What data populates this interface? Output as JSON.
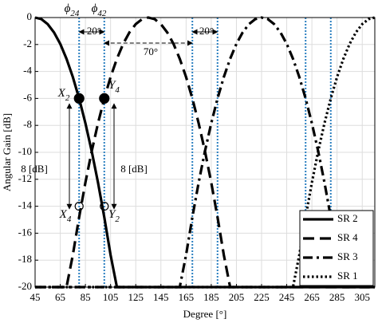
{
  "chart_data": {
    "type": "line",
    "xlabel": "Degree [°]",
    "ylabel": "Angular Gain [dB]",
    "x": [
      45,
      50,
      55,
      60,
      65,
      70,
      75,
      80,
      85,
      90,
      95,
      100,
      105,
      110,
      115,
      120,
      125,
      130,
      135,
      140,
      145,
      150,
      155,
      160,
      165,
      170,
      175,
      180,
      185,
      190,
      195,
      200,
      205,
      210,
      215,
      220,
      225,
      230,
      235,
      240,
      245,
      250,
      255,
      260,
      265,
      270,
      275,
      280,
      285,
      290,
      295,
      300,
      305,
      310,
      315
    ],
    "series": [
      {
        "name": "SR 2",
        "color": "#000000",
        "dash": "solid",
        "values": [
          0,
          -0.12,
          -0.49,
          -1.1,
          -1.96,
          -3.06,
          -4.41,
          -6,
          -7.84,
          -9.92,
          -12.24,
          -14.82,
          -17.63,
          -20,
          -20,
          -20,
          -20,
          -20,
          -20,
          -20,
          -20,
          -20,
          -20,
          -20,
          -20,
          -20,
          -20,
          -20,
          -20,
          -20,
          -20,
          -20,
          -20,
          -20,
          -20,
          -20,
          -20,
          -20,
          -20,
          -20,
          -20,
          -20,
          -20,
          -20,
          -20,
          -20,
          -20,
          -20,
          -20,
          -20,
          -20,
          -20,
          -20,
          -20,
          -20
        ]
      },
      {
        "name": "SR 4",
        "color": "#000000",
        "dash": "dashed",
        "values": [
          -20,
          -20,
          -20,
          -20,
          -20,
          -20,
          -17.63,
          -14.82,
          -12.24,
          -9.92,
          -7.84,
          -6,
          -4.41,
          -3.06,
          -1.96,
          -1.1,
          -0.49,
          -0.12,
          0,
          -0.12,
          -0.49,
          -1.1,
          -1.96,
          -3.06,
          -4.41,
          -6,
          -7.84,
          -9.92,
          -12.24,
          -14.82,
          -17.63,
          -20,
          -20,
          -20,
          -20,
          -20,
          -20,
          -20,
          -20,
          -20,
          -20,
          -20,
          -20,
          -20,
          -20,
          -20,
          -20,
          -20,
          -20,
          -20,
          -20,
          -20,
          -20,
          -20,
          -20
        ]
      },
      {
        "name": "SR 3",
        "color": "#000000",
        "dash": "dashdot",
        "values": [
          -20,
          -20,
          -20,
          -20,
          -20,
          -20,
          -20,
          -20,
          -20,
          -20,
          -20,
          -20,
          -20,
          -20,
          -20,
          -20,
          -20,
          -20,
          -20,
          -20,
          -20,
          -20,
          -20,
          -20,
          -17.63,
          -14.82,
          -12.24,
          -9.92,
          -7.84,
          -6,
          -4.41,
          -3.06,
          -1.96,
          -1.1,
          -0.49,
          -0.12,
          0,
          -0.12,
          -0.49,
          -1.1,
          -1.96,
          -3.06,
          -4.41,
          -6,
          -7.84,
          -9.92,
          -12.24,
          -14.82,
          -17.63,
          -20,
          -20,
          -20,
          -20,
          -20,
          -20
        ]
      },
      {
        "name": "SR 1",
        "color": "#000000",
        "dash": "dotted",
        "values": [
          -20,
          -20,
          -20,
          -20,
          -20,
          -20,
          -20,
          -20,
          -20,
          -20,
          -20,
          -20,
          -20,
          -20,
          -20,
          -20,
          -20,
          -20,
          -20,
          -20,
          -20,
          -20,
          -20,
          -20,
          -20,
          -20,
          -20,
          -20,
          -20,
          -20,
          -20,
          -20,
          -20,
          -20,
          -20,
          -20,
          -20,
          -20,
          -20,
          -20,
          -20,
          -20,
          -17.63,
          -14.82,
          -12.24,
          -9.92,
          -7.84,
          -6,
          -4.41,
          -3.06,
          -1.96,
          -1.1,
          -0.49,
          -0.12,
          0
        ]
      }
    ],
    "xlim": [
      45,
      315
    ],
    "xticks": [
      45,
      65,
      85,
      105,
      125,
      145,
      165,
      185,
      205,
      225,
      245,
      265,
      285,
      305
    ],
    "ylim": [
      -20,
      0
    ],
    "yticks": [
      0,
      -2,
      -4,
      -6,
      -8,
      -10,
      -12,
      -14,
      -16,
      -18,
      -20
    ],
    "grid": true,
    "legend": "lower right",
    "vlines": {
      "color": "#2a7fc0",
      "x": [
        80,
        100,
        170,
        190,
        260,
        280
      ]
    },
    "points": [
      {
        "x": 80,
        "y": -6,
        "filled": true
      },
      {
        "x": 100,
        "y": -6,
        "filled": true
      },
      {
        "x": 80,
        "y": -14,
        "filled": false
      },
      {
        "x": 100,
        "y": -14,
        "filled": false
      }
    ],
    "annotations": [
      {
        "text": "ϕ",
        "sub": "24"
      },
      {
        "text": "ϕ",
        "sub": "42"
      },
      {
        "text": "20°"
      },
      {
        "text": "70°"
      },
      {
        "text": "20°"
      },
      {
        "text": "X",
        "sub": "2"
      },
      {
        "text": "Y",
        "sub": "4"
      },
      {
        "text": "X",
        "sub": "4"
      },
      {
        "text": "Y",
        "sub": "2"
      },
      {
        "text": "8 [dB]"
      },
      {
        "text": "8 [dB]"
      }
    ]
  }
}
